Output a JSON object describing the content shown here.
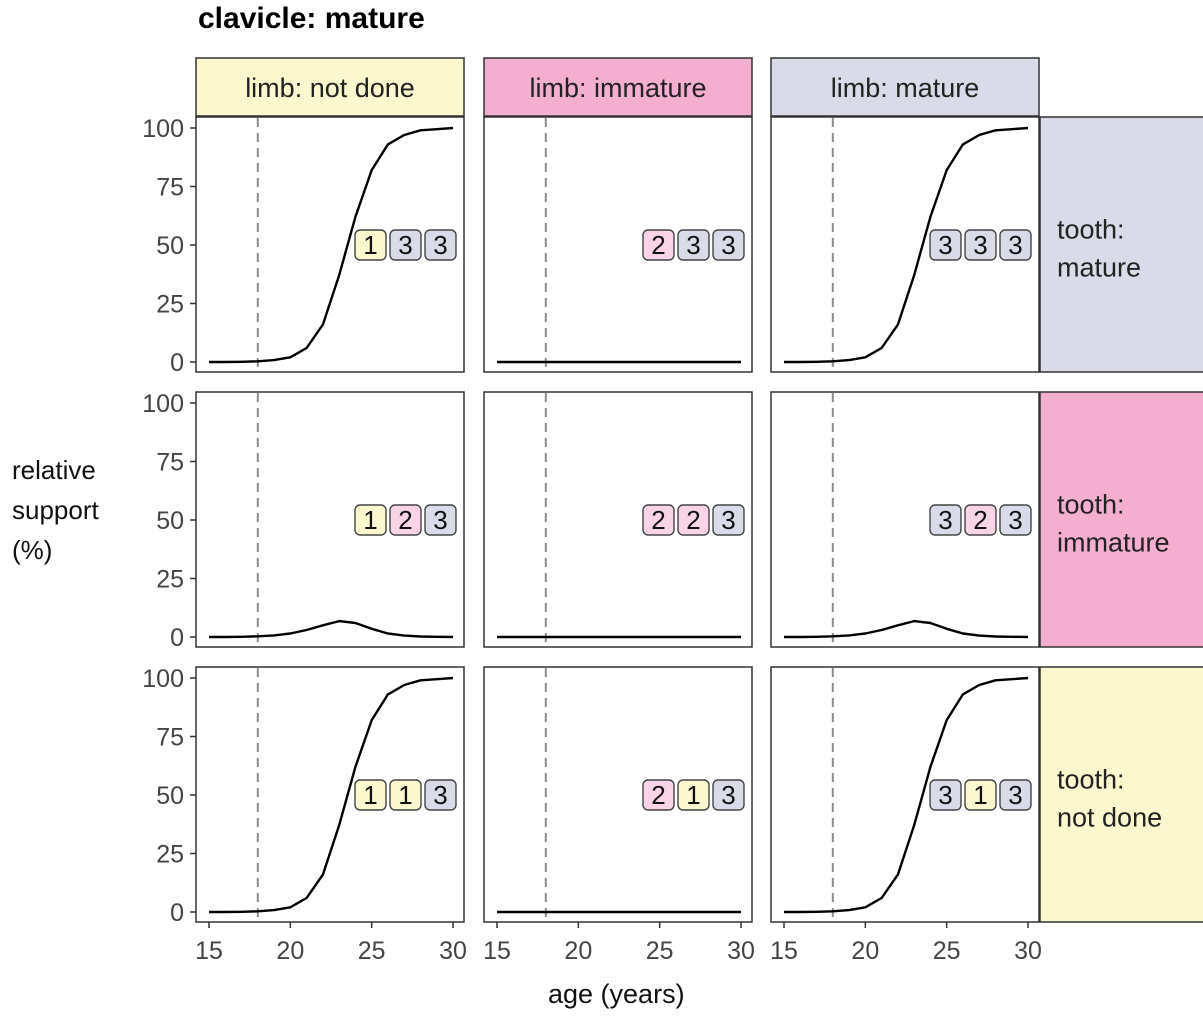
{
  "chart_data": {
    "type": "line",
    "title": "clavicle: mature",
    "xlabel": "age (years)",
    "ylabel": "relative\nsupport\n(%)",
    "x_ticks": [
      15,
      20,
      25,
      30
    ],
    "y_ticks": [
      0,
      25,
      50,
      75,
      100
    ],
    "xlim": [
      15,
      30
    ],
    "ylim": [
      0,
      100
    ],
    "reference_line_x": 18,
    "columns": [
      {
        "label": "limb: not done",
        "color": "#fbf8cf"
      },
      {
        "label": "limb: immature",
        "color": "#f3aed0"
      },
      {
        "label": "limb: mature",
        "color": "#d9dbe8"
      }
    ],
    "rows": [
      {
        "label": "tooth:\nmature",
        "color": "#d9dbe8"
      },
      {
        "label": "tooth:\nimmature",
        "color": "#f3aed0"
      },
      {
        "label": "tooth:\nnot done",
        "color": "#fbf8cf"
      }
    ],
    "score_colors": {
      "1": "#fbf8cf",
      "2": "#f9d4e6",
      "3": "#d9dbe8"
    },
    "panels": [
      {
        "row": 0,
        "col": 0,
        "badges": [
          "1",
          "3",
          "3"
        ],
        "x": [
          15,
          16,
          17,
          18,
          19,
          20,
          21,
          22,
          23,
          24,
          25,
          26,
          27,
          28,
          29,
          30
        ],
        "y": [
          0,
          0,
          0.1,
          0.3,
          0.8,
          2,
          6,
          16,
          37,
          62,
          82,
          93,
          97,
          99,
          99.5,
          100
        ]
      },
      {
        "row": 0,
        "col": 1,
        "badges": [
          "2",
          "3",
          "3"
        ],
        "x": [
          15,
          20,
          25,
          30
        ],
        "y": [
          0,
          0,
          0,
          0
        ]
      },
      {
        "row": 0,
        "col": 2,
        "badges": [
          "3",
          "3",
          "3"
        ],
        "x": [
          15,
          16,
          17,
          18,
          19,
          20,
          21,
          22,
          23,
          24,
          25,
          26,
          27,
          28,
          29,
          30
        ],
        "y": [
          0,
          0,
          0.1,
          0.3,
          0.8,
          2,
          6,
          16,
          37,
          62,
          82,
          93,
          97,
          99,
          99.5,
          100
        ]
      },
      {
        "row": 1,
        "col": 0,
        "badges": [
          "1",
          "2",
          "3"
        ],
        "x": [
          15,
          16,
          17,
          18,
          19,
          20,
          21,
          22,
          23,
          24,
          25,
          26,
          27,
          28,
          29,
          30
        ],
        "y": [
          0,
          0,
          0.1,
          0.3,
          0.7,
          1.5,
          3,
          5,
          6.8,
          6,
          3.5,
          1.5,
          0.6,
          0.2,
          0.1,
          0
        ]
      },
      {
        "row": 1,
        "col": 1,
        "badges": [
          "2",
          "2",
          "3"
        ],
        "x": [
          15,
          20,
          25,
          30
        ],
        "y": [
          0,
          0,
          0,
          0
        ]
      },
      {
        "row": 1,
        "col": 2,
        "badges": [
          "3",
          "2",
          "3"
        ],
        "x": [
          15,
          16,
          17,
          18,
          19,
          20,
          21,
          22,
          23,
          24,
          25,
          26,
          27,
          28,
          29,
          30
        ],
        "y": [
          0,
          0,
          0.1,
          0.3,
          0.7,
          1.5,
          3,
          5,
          6.8,
          6,
          3.5,
          1.5,
          0.6,
          0.2,
          0.1,
          0
        ]
      },
      {
        "row": 2,
        "col": 0,
        "badges": [
          "1",
          "1",
          "3"
        ],
        "x": [
          15,
          16,
          17,
          18,
          19,
          20,
          21,
          22,
          23,
          24,
          25,
          26,
          27,
          28,
          29,
          30
        ],
        "y": [
          0,
          0,
          0.1,
          0.3,
          0.8,
          2,
          6,
          16,
          37,
          62,
          82,
          93,
          97,
          99,
          99.5,
          100
        ]
      },
      {
        "row": 2,
        "col": 1,
        "badges": [
          "2",
          "1",
          "3"
        ],
        "x": [
          15,
          20,
          25,
          30
        ],
        "y": [
          0,
          0,
          0,
          0
        ]
      },
      {
        "row": 2,
        "col": 2,
        "badges": [
          "3",
          "1",
          "3"
        ],
        "x": [
          15,
          16,
          17,
          18,
          19,
          20,
          21,
          22,
          23,
          24,
          25,
          26,
          27,
          28,
          29,
          30
        ],
        "y": [
          0,
          0,
          0.1,
          0.3,
          0.8,
          2,
          6,
          16,
          37,
          62,
          82,
          93,
          97,
          99,
          99.5,
          100
        ]
      }
    ]
  }
}
